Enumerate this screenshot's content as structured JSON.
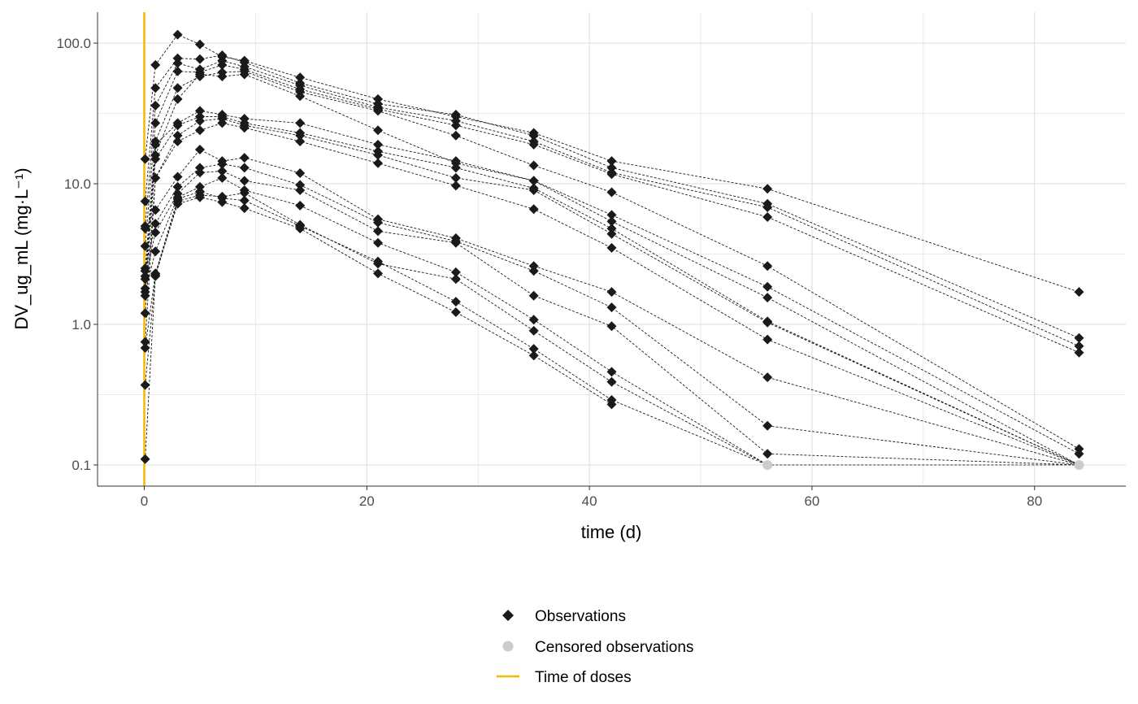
{
  "chart_data": {
    "type": "line",
    "xlabel": "time (d)",
    "ylabel": "DV_ug_mL (mg·L⁻¹)",
    "xlim": [
      -4.2,
      88.2
    ],
    "ylim": [
      0.0707,
      166
    ],
    "yscale": "log",
    "grid": true,
    "xticks": [
      0,
      20,
      40,
      60,
      80
    ],
    "xtick_labels": [
      "0",
      "20",
      "40",
      "60",
      "80"
    ],
    "yticks": [
      0.1,
      1,
      10,
      100
    ],
    "ytick_labels": [
      "0.1",
      "1.0",
      "10.0",
      "100.0"
    ],
    "dose_times": [
      0
    ],
    "times": [
      0.08,
      1,
      3,
      5,
      7,
      9,
      14,
      21,
      28,
      35,
      42,
      56,
      84
    ],
    "series": [
      {
        "values": [
          15,
          70,
          115,
          98,
          80,
          75,
          57,
          40,
          30,
          23,
          14.5,
          9.2,
          1.7
        ]
      },
      {
        "values": [
          7.5,
          48,
          78,
          77,
          82,
          73,
          52,
          37,
          31,
          22,
          13,
          7.2,
          0.8
        ]
      },
      {
        "values": [
          5,
          36,
          72,
          65,
          75,
          68,
          50,
          35,
          28,
          20,
          12,
          6.8,
          0.7
        ]
      },
      {
        "values": [
          3.6,
          27,
          63,
          62,
          70,
          65,
          47,
          34,
          26,
          19,
          11.7,
          5.8,
          0.63
        ]
      },
      {
        "values": [
          2.5,
          20,
          48,
          58,
          62,
          63,
          45,
          33,
          22,
          13.5,
          8.7,
          2.6,
          0.13
        ]
      },
      {
        "values": [
          2.2,
          16,
          40,
          60,
          58,
          60,
          42,
          24,
          14,
          10.5,
          6,
          1.85,
          0.12
        ]
      },
      {
        "values": [
          1.8,
          19,
          27,
          33,
          31,
          29,
          27,
          19,
          14.5,
          10.5,
          5.4,
          1.55,
          0.1
        ]
      },
      {
        "values": [
          1.6,
          15,
          26,
          30,
          30,
          27,
          23,
          17,
          13,
          9.3,
          4.8,
          1.05,
          0.1
        ]
      },
      {
        "values": [
          1.2,
          11,
          22,
          28,
          29,
          26,
          22,
          16,
          11,
          9,
          4.4,
          1.03,
          0.1
        ]
      },
      {
        "values": [
          0.75,
          11,
          20,
          24,
          27,
          25,
          20,
          14,
          9.7,
          6.6,
          3.5,
          0.78,
          0.1
        ]
      },
      {
        "values": [
          4.8,
          6.5,
          11.2,
          17.5,
          14.5,
          15.3,
          11.9,
          5.6,
          4.1,
          2.6,
          1.7,
          0.42,
          0.1
        ]
      },
      {
        "values": [
          2.4,
          5.2,
          9.5,
          13,
          13.8,
          13,
          9.8,
          5.3,
          3.9,
          2.4,
          1.32,
          0.19,
          0.1
        ]
      },
      {
        "values": [
          2.1,
          4.5,
          8.5,
          12,
          12.3,
          10.5,
          9,
          4.6,
          3.8,
          1.6,
          0.97,
          0.12,
          0.1
        ]
      },
      {
        "values": [
          1.7,
          3.3,
          8,
          9.5,
          11,
          9,
          7,
          3.8,
          2.35,
          1.08,
          0.46,
          0.1,
          0.1
        ]
      },
      {
        "values": [
          0.37,
          2.2,
          7.5,
          8.3,
          8.1,
          8.6,
          5.1,
          2.7,
          2.1,
          0.9,
          0.39,
          0.1,
          null
        ]
      },
      {
        "values": [
          0.68,
          2.3,
          7.8,
          8.8,
          7.9,
          7.6,
          5,
          2.8,
          1.45,
          0.67,
          0.29,
          0.1,
          null
        ]
      },
      {
        "values": [
          0.11,
          2.25,
          7.2,
          8,
          7.4,
          6.7,
          4.8,
          2.3,
          1.22,
          0.6,
          0.27,
          null,
          null
        ]
      }
    ],
    "censored_points": [
      [
        56,
        0.1
      ],
      [
        84,
        0.1
      ]
    ],
    "legend": {
      "placement": "bottom",
      "entries": [
        "Observations",
        "Censored observations",
        "Time of doses"
      ]
    },
    "colors": {
      "observations": "#1a1a1a",
      "censored": "#cccccc",
      "dose": "#f5b800",
      "grid": "#dedede"
    }
  }
}
